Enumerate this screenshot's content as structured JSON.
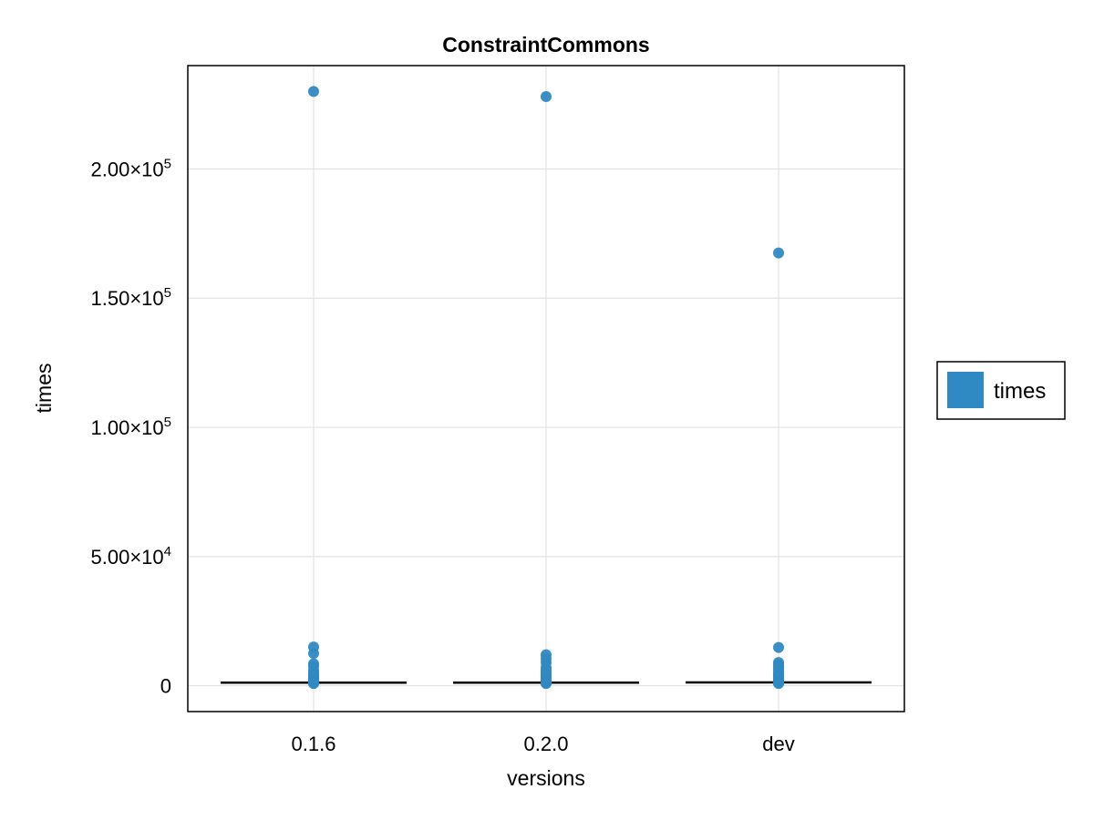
{
  "chart_data": {
    "type": "scatter",
    "title": "ConstraintCommons",
    "xlabel": "versions",
    "ylabel": "times",
    "categories": [
      "0.1.6",
      "0.2.0",
      "dev"
    ],
    "ylim": [
      -10000,
      240000
    ],
    "yticks": [
      {
        "value": 0,
        "label": "0"
      },
      {
        "value": 50000,
        "label": "5.00×10",
        "exp": "4"
      },
      {
        "value": 100000,
        "label": "1.00×10",
        "exp": "5"
      },
      {
        "value": 150000,
        "label": "1.50×10",
        "exp": "5"
      },
      {
        "value": 200000,
        "label": "2.00×10",
        "exp": "5"
      }
    ],
    "grid": true,
    "legend_position": "right",
    "series": [
      {
        "name": "times",
        "color": "#2f89c2",
        "points": [
          {
            "x": "0.1.6",
            "y": [
              230000,
              15000,
              12500,
              8500,
              7500,
              6000,
              5000,
              4500,
              4000,
              3500,
              3000,
              2500,
              2000,
              1800,
              1500,
              1300,
              1100,
              1000,
              900
            ]
          },
          {
            "x": "0.2.0",
            "y": [
              228000,
              12000,
              10500,
              9000,
              7000,
              6000,
              5200,
              4500,
              4000,
              3400,
              3000,
              2500,
              2000,
              1700,
              1500,
              1300,
              1100,
              1000,
              900
            ]
          },
          {
            "x": "dev",
            "y": [
              167500,
              14800,
              9000,
              8000,
              7000,
              6000,
              5000,
              4500,
              4000,
              3500,
              3000,
              2500,
              2000,
              1700,
              1500,
              1300,
              1100,
              1000,
              900
            ]
          }
        ]
      }
    ],
    "medians": [
      {
        "x": "0.1.6",
        "y": 1200
      },
      {
        "x": "0.2.0",
        "y": 1200
      },
      {
        "x": "dev",
        "y": 1300
      }
    ]
  }
}
